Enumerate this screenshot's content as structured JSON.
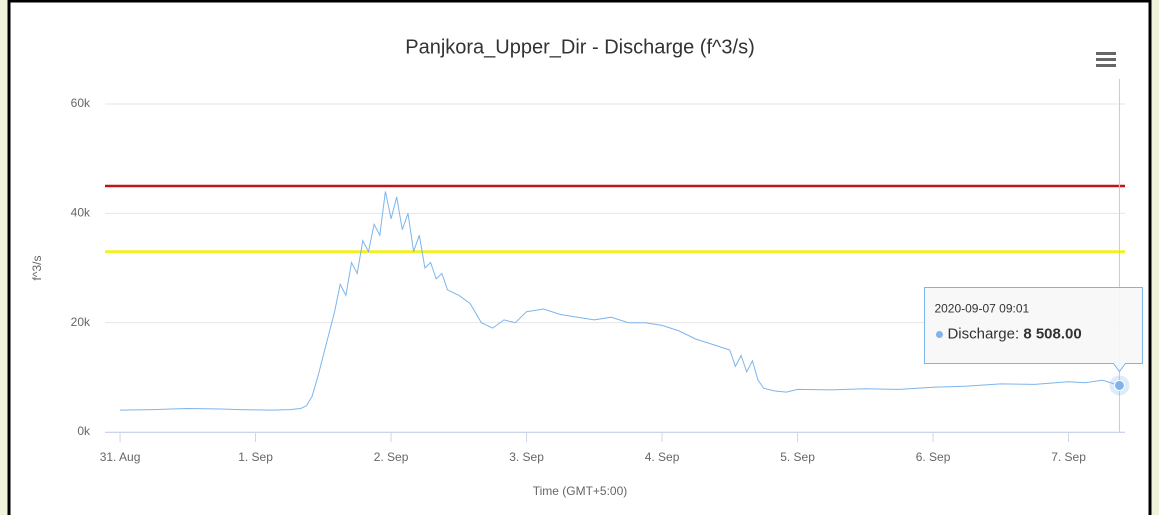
{
  "chart_data": {
    "type": "line",
    "title": "Panjkora_Upper_Dir - Discharge (f^3/s)",
    "x_axis_label": "Time (GMT+5:00)",
    "y_axis_label": "f^3/s",
    "x": [
      "2020-08-31 00:00",
      "2020-08-31 03:00",
      "2020-08-31 06:00",
      "2020-08-31 09:00",
      "2020-08-31 12:00",
      "2020-08-31 15:00",
      "2020-08-31 18:00",
      "2020-08-31 21:00",
      "2020-09-01 00:00",
      "2020-09-01 03:00",
      "2020-09-01 06:00",
      "2020-09-01 08:00",
      "2020-09-01 09:00",
      "2020-09-01 10:00",
      "2020-09-01 11:00",
      "2020-09-01 12:00",
      "2020-09-01 13:00",
      "2020-09-01 14:00",
      "2020-09-01 15:00",
      "2020-09-01 16:00",
      "2020-09-01 17:00",
      "2020-09-01 18:00",
      "2020-09-01 19:00",
      "2020-09-01 20:00",
      "2020-09-01 21:00",
      "2020-09-01 22:00",
      "2020-09-01 23:00",
      "2020-09-02 00:00",
      "2020-09-02 01:00",
      "2020-09-02 02:00",
      "2020-09-02 03:00",
      "2020-09-02 04:00",
      "2020-09-02 05:00",
      "2020-09-02 06:00",
      "2020-09-02 07:00",
      "2020-09-02 08:00",
      "2020-09-02 09:00",
      "2020-09-02 10:00",
      "2020-09-02 12:00",
      "2020-09-02 14:00",
      "2020-09-02 16:00",
      "2020-09-02 18:00",
      "2020-09-02 20:00",
      "2020-09-02 22:00",
      "2020-09-03 00:00",
      "2020-09-03 03:00",
      "2020-09-03 06:00",
      "2020-09-03 09:00",
      "2020-09-03 12:00",
      "2020-09-03 15:00",
      "2020-09-03 18:00",
      "2020-09-03 21:00",
      "2020-09-04 00:00",
      "2020-09-04 03:00",
      "2020-09-04 06:00",
      "2020-09-04 09:00",
      "2020-09-04 12:00",
      "2020-09-04 13:00",
      "2020-09-04 14:00",
      "2020-09-04 15:00",
      "2020-09-04 16:00",
      "2020-09-04 17:00",
      "2020-09-04 18:00",
      "2020-09-04 20:00",
      "2020-09-04 22:00",
      "2020-09-05 00:00",
      "2020-09-05 06:00",
      "2020-09-05 12:00",
      "2020-09-05 18:00",
      "2020-09-06 00:00",
      "2020-09-06 06:00",
      "2020-09-06 12:00",
      "2020-09-06 18:00",
      "2020-09-07 00:00",
      "2020-09-07 03:00",
      "2020-09-07 06:00",
      "2020-09-07 09:01"
    ],
    "series": [
      {
        "name": "Discharge",
        "color": "#7cb5ec",
        "values": [
          4000,
          4050,
          4100,
          4200,
          4300,
          4250,
          4200,
          4100,
          4050,
          4000,
          4100,
          4300,
          4800,
          6500,
          10000,
          14000,
          18000,
          22000,
          27000,
          25000,
          31000,
          29000,
          35000,
          33000,
          38000,
          36000,
          44000,
          39000,
          43000,
          37000,
          40000,
          33000,
          36000,
          30000,
          31000,
          28000,
          29000,
          26000,
          25000,
          23500,
          20000,
          19000,
          20500,
          20000,
          22000,
          22500,
          21500,
          21000,
          20500,
          21000,
          20000,
          20000,
          19500,
          18500,
          17000,
          16000,
          15000,
          12000,
          14000,
          11000,
          13000,
          9500,
          8000,
          7500,
          7300,
          7800,
          7700,
          7900,
          7800,
          8200,
          8400,
          8800,
          8700,
          9200,
          9000,
          9500,
          8508
        ]
      }
    ],
    "tooltip_value_label": "8 508.00",
    "xlim": [
      "2020-08-30 21:20",
      "2020-09-07 10:00"
    ],
    "xticks": [
      {
        "value": "2020-08-31 00:00",
        "label": "31. Aug"
      },
      {
        "value": "2020-09-01 00:00",
        "label": "1. Sep"
      },
      {
        "value": "2020-09-02 00:00",
        "label": "2. Sep"
      },
      {
        "value": "2020-09-03 00:00",
        "label": "3. Sep"
      },
      {
        "value": "2020-09-04 00:00",
        "label": "4. Sep"
      },
      {
        "value": "2020-09-05 00:00",
        "label": "5. Sep"
      },
      {
        "value": "2020-09-06 00:00",
        "label": "6. Sep"
      },
      {
        "value": "2020-09-07 00:00",
        "label": "7. Sep"
      }
    ],
    "ylim": [
      0,
      60000
    ],
    "yticks": [
      {
        "value": 0,
        "label": "0k"
      },
      {
        "value": 20000,
        "label": "20k"
      },
      {
        "value": 40000,
        "label": "40k"
      },
      {
        "value": 60000,
        "label": "60k"
      }
    ],
    "plot_lines": [
      {
        "value": 45000,
        "color": "#c0141f"
      },
      {
        "value": 33000,
        "color": "#f2f200"
      }
    ],
    "grid": true
  }
}
